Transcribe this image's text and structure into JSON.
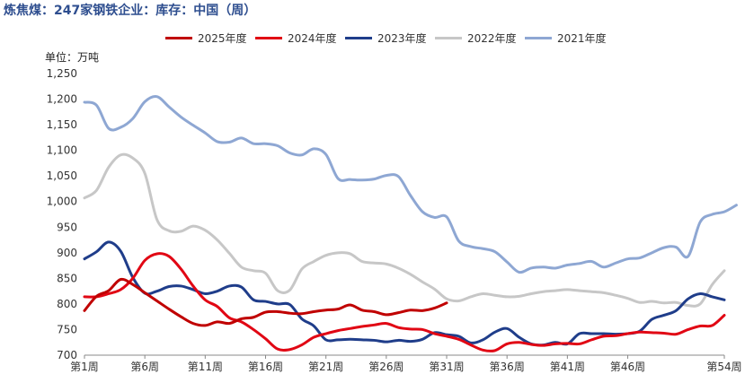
{
  "chart_data": {
    "type": "line",
    "title": "炼焦煤：247家钢铁企业：库存：中国（周）",
    "unit_label": "单位：万吨",
    "ylim": [
      700,
      1250
    ],
    "yticks": [
      "700",
      "750",
      "800",
      "850",
      "900",
      "950",
      "1,000",
      "1,050",
      "1,100",
      "1,150",
      "1,200",
      "1,250"
    ],
    "ytick_values": [
      700,
      750,
      800,
      850,
      900,
      950,
      1000,
      1050,
      1100,
      1150,
      1200,
      1250
    ],
    "xlim": [
      1,
      54
    ],
    "xticks": [
      "第1周",
      "第6周",
      "第11周",
      "第16周",
      "第21周",
      "第26周",
      "第31周",
      "第36周",
      "第41周",
      "第46周",
      "第54周"
    ],
    "xtick_values": [
      1,
      6,
      11,
      16,
      21,
      26,
      31,
      36,
      41,
      46,
      54
    ],
    "legend_position": "top",
    "grid": false,
    "series": [
      {
        "name": "2025年度",
        "color": "#c00000",
        "width": 3,
        "values": [
          787,
          815,
          826,
          848,
          838,
          822,
          806,
          790,
          775,
          762,
          758,
          765,
          762,
          771,
          774,
          784,
          785,
          782,
          781,
          785,
          788,
          790,
          798,
          788,
          785,
          779,
          783,
          788,
          787,
          792,
          802
        ]
      },
      {
        "name": "2024年度",
        "color": "#e10714",
        "width": 3,
        "values": [
          814,
          814,
          820,
          828,
          850,
          885,
          898,
          893,
          868,
          835,
          808,
          795,
          773,
          765,
          750,
          732,
          712,
          711,
          720,
          735,
          742,
          748,
          752,
          756,
          759,
          762,
          754,
          751,
          750,
          742,
          737,
          731,
          720,
          710,
          709,
          722,
          725,
          721,
          719,
          722,
          723,
          722,
          730,
          737,
          738,
          742,
          745,
          744,
          743,
          741,
          750,
          757,
          758,
          778
        ]
      },
      {
        "name": "2023年度",
        "color": "#1f3d8a",
        "width": 3,
        "values": [
          888,
          902,
          921,
          903,
          852,
          821,
          825,
          834,
          835,
          828,
          820,
          825,
          835,
          833,
          808,
          805,
          800,
          799,
          771,
          757,
          730,
          730,
          731,
          730,
          729,
          726,
          729,
          727,
          731,
          744,
          740,
          737,
          724,
          730,
          745,
          752,
          735,
          722,
          720,
          725,
          722,
          742,
          742,
          742,
          741,
          742,
          747,
          770,
          778,
          787,
          810,
          820,
          814,
          808
        ]
      },
      {
        "name": "2022年度",
        "color": "#c7c7c7",
        "width": 3,
        "values": [
          1007,
          1022,
          1067,
          1091,
          1085,
          1055,
          965,
          943,
          942,
          952,
          944,
          925,
          899,
          872,
          865,
          860,
          826,
          827,
          868,
          883,
          895,
          900,
          898,
          883,
          880,
          878,
          870,
          858,
          843,
          829,
          810,
          806,
          814,
          820,
          817,
          814,
          815,
          820,
          824,
          826,
          828,
          826,
          824,
          822,
          817,
          811,
          803,
          805,
          802,
          803,
          797,
          800,
          838,
          865
        ]
      },
      {
        "name": "2021年度",
        "color": "#8ea7d3",
        "width": 3,
        "values": [
          1194,
          1188,
          1143,
          1145,
          1162,
          1195,
          1205,
          1185,
          1165,
          1149,
          1134,
          1117,
          1116,
          1124,
          1113,
          1113,
          1109,
          1095,
          1091,
          1103,
          1092,
          1045,
          1043,
          1042,
          1044,
          1051,
          1049,
          1012,
          980,
          969,
          970,
          923,
          912,
          908,
          902,
          882,
          862,
          870,
          872,
          870,
          876,
          879,
          883,
          872,
          880,
          888,
          890,
          900,
          910,
          911,
          893,
          960,
          975,
          980,
          993
        ]
      }
    ]
  }
}
